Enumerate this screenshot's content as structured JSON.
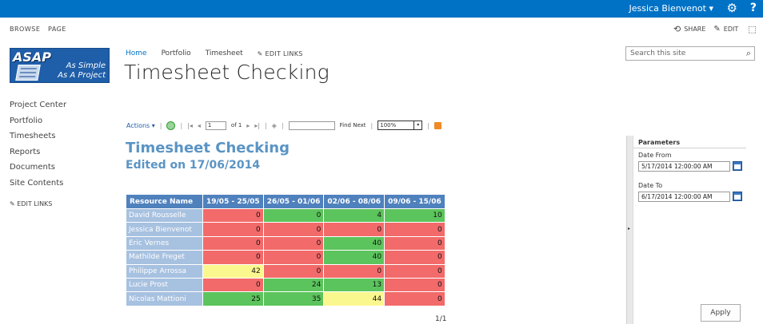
{
  "suitebar": {
    "user": "Jessica Bienvenot ▾",
    "gear_glyph": "⚙",
    "help_glyph": "?"
  },
  "ribbon": {
    "tabs": [
      "BROWSE",
      "PAGE"
    ],
    "share": "SHARE",
    "edit": "EDIT"
  },
  "logo": {
    "text": "ASAP",
    "slogan1": "As Simple",
    "slogan2": "As A Project"
  },
  "topnav": {
    "items": [
      "Home",
      "Portfolio",
      "Timesheet"
    ],
    "edit_links": "EDIT LINKS"
  },
  "site_title": "Timesheet Checking",
  "search": {
    "placeholder": "Search this site"
  },
  "leftnav": {
    "items": [
      "Project Center",
      "Portfolio",
      "Timesheets",
      "Reports",
      "Documents",
      "Site Contents"
    ],
    "edit_links": "EDIT LINKS"
  },
  "toolbar": {
    "actions": "Actions ▾",
    "page": "1",
    "of": "of 1",
    "find_next": "Find Next",
    "zoom": "100%"
  },
  "report": {
    "title": "Timesheet Checking",
    "subtitle": "Edited on 17/06/2014",
    "columns": [
      "Resource Name",
      "19/05 - 25/05",
      "26/05 - 01/06",
      "02/06 - 08/06",
      "09/06 - 15/06"
    ],
    "rows": [
      {
        "name": "David Rousselle",
        "values": [
          "0",
          "0",
          "4",
          "10"
        ],
        "colors": [
          "red",
          "green",
          "green",
          "green"
        ]
      },
      {
        "name": "Jessica Bienvenot",
        "values": [
          "0",
          "0",
          "0",
          "0"
        ],
        "colors": [
          "red",
          "red",
          "red",
          "red"
        ]
      },
      {
        "name": "Eric Vernes",
        "values": [
          "0",
          "0",
          "40",
          "0"
        ],
        "colors": [
          "red",
          "red",
          "green",
          "red"
        ]
      },
      {
        "name": "Mathilde Freget",
        "values": [
          "0",
          "0",
          "40",
          "0"
        ],
        "colors": [
          "red",
          "red",
          "green",
          "red"
        ]
      },
      {
        "name": "Philippe Arrossa",
        "values": [
          "42",
          "0",
          "0",
          "0"
        ],
        "colors": [
          "yellow",
          "red",
          "red",
          "red"
        ]
      },
      {
        "name": "Lucie Prost",
        "values": [
          "0",
          "24",
          "13",
          "0"
        ],
        "colors": [
          "red",
          "green",
          "green",
          "red"
        ]
      },
      {
        "name": "Nicolas Mattioni",
        "values": [
          "25",
          "35",
          "44",
          "0"
        ],
        "colors": [
          "green",
          "green",
          "yellow",
          "red"
        ]
      }
    ],
    "pager": "1/1"
  },
  "parameters": {
    "header": "Parameters",
    "date_from_label": "Date From",
    "date_from_value": "5/17/2014 12:00:00 AM",
    "date_to_label": "Date To",
    "date_to_value": "6/17/2014 12:00:00 AM",
    "apply": "Apply"
  }
}
